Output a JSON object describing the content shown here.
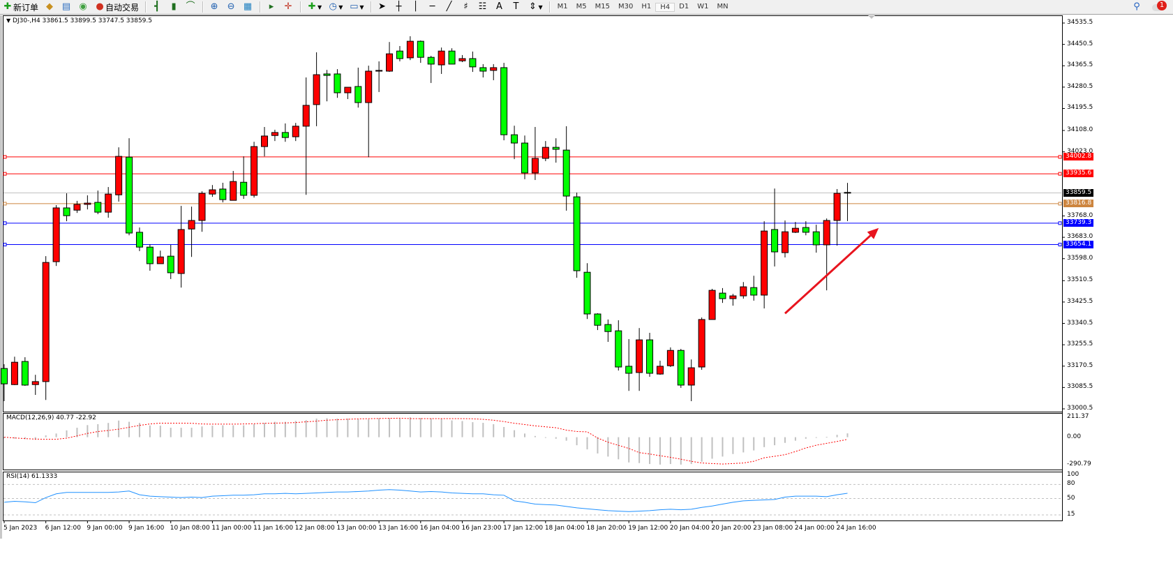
{
  "toolbar": {
    "new_order": "新订单",
    "auto_trading": "自动交易",
    "icons": [
      "new-order-icon",
      "market-watch-icon",
      "navigator-icon",
      "signals-icon",
      "auto-trading-icon",
      "bar-chart-icon",
      "candlestick-icon",
      "line-chart-icon",
      "zoom-in-icon",
      "zoom-out-icon",
      "tile-windows-icon",
      "chart-shift-icon",
      "autoscroll-icon",
      "indicators-icon",
      "periods-icon",
      "templates-icon",
      "cursor-icon",
      "crosshair-icon",
      "vertical-line-icon",
      "horizontal-line-icon",
      "trendline-icon",
      "fibonacci-icon",
      "fibo-fan-icon",
      "text-icon",
      "text-label-icon",
      "arrows-icon"
    ],
    "timeframes": [
      "M1",
      "M5",
      "M15",
      "M30",
      "H1",
      "H4",
      "D1",
      "W1",
      "MN"
    ],
    "active_timeframe": "H4",
    "notification_count": "1"
  },
  "chart": {
    "symbol": "DJ30-,H4",
    "ohlc": "33861.5 33899.5 33747.5 33859.5"
  },
  "chart_data": {
    "type": "candlestick",
    "symbol": "DJ30-",
    "timeframe": "H4",
    "ylim": [
      33000.5,
      34535.5
    ],
    "colors": {
      "bull": "#ff0000",
      "bear": "#00ff00",
      "outline": "#000000"
    },
    "y_ticks": [
      "34535.5",
      "34450.5",
      "34365.5",
      "34280.5",
      "34195.5",
      "34108.0",
      "34023.0",
      "33768.0",
      "33683.0",
      "33598.0",
      "33510.5",
      "33425.5",
      "33340.5",
      "33255.5",
      "33170.5",
      "33085.5",
      "33000.5"
    ],
    "x_labels": [
      "5 Jan 2023",
      "6 Jan 12:00",
      "9 Jan 00:00",
      "9 Jan 16:00",
      "10 Jan 08:00",
      "11 Jan 00:00",
      "11 Jan 16:00",
      "12 Jan 08:00",
      "13 Jan 00:00",
      "13 Jan 16:00",
      "16 Jan 04:00",
      "16 Jan 23:00",
      "17 Jan 12:00",
      "18 Jan 04:00",
      "18 Jan 20:00",
      "19 Jan 12:00",
      "20 Jan 04:00",
      "20 Jan 20:00",
      "23 Jan 08:00",
      "24 Jan 00:00",
      "24 Jan 16:00"
    ],
    "ohlc": [
      [
        33161,
        33178,
        33031,
        33100
      ],
      [
        33097,
        33208,
        33095,
        33186
      ],
      [
        33189,
        33206,
        33092,
        33095
      ],
      [
        33097,
        33136,
        33056,
        33109
      ],
      [
        33109,
        33608,
        33036,
        33583
      ],
      [
        33586,
        33811,
        33569,
        33800
      ],
      [
        33800,
        33858,
        33747,
        33769
      ],
      [
        33791,
        33828,
        33780,
        33814
      ],
      [
        33814,
        33850,
        33794,
        33819
      ],
      [
        33822,
        33869,
        33775,
        33783
      ],
      [
        33783,
        33883,
        33761,
        33855
      ],
      [
        33852,
        34041,
        33825,
        34005
      ],
      [
        34002,
        34077,
        33691,
        33700
      ],
      [
        33703,
        33722,
        33628,
        33644
      ],
      [
        33644,
        33655,
        33550,
        33578
      ],
      [
        33578,
        33630,
        33578,
        33605
      ],
      [
        33608,
        33653,
        33517,
        33542
      ],
      [
        33539,
        33808,
        33483,
        33714
      ],
      [
        33716,
        33805,
        33605,
        33750
      ],
      [
        33750,
        33866,
        33705,
        33858
      ],
      [
        33855,
        33891,
        33844,
        33872
      ],
      [
        33875,
        33900,
        33822,
        33833
      ],
      [
        33830,
        33947,
        33830,
        33905
      ],
      [
        33902,
        34005,
        33836,
        33850
      ],
      [
        33850,
        34063,
        33841,
        34044
      ],
      [
        34044,
        34122,
        34005,
        34086
      ],
      [
        34088,
        34111,
        34066,
        34100
      ],
      [
        34100,
        34136,
        34063,
        34080
      ],
      [
        34083,
        34138,
        34066,
        34125
      ],
      [
        34125,
        34319,
        33852,
        34208
      ],
      [
        34211,
        34419,
        34125,
        34330
      ],
      [
        34333,
        34349,
        34224,
        34327
      ],
      [
        34333,
        34352,
        34238,
        34258
      ],
      [
        34258,
        34280,
        34233,
        34280
      ],
      [
        34283,
        34358,
        34199,
        34219
      ],
      [
        34219,
        34366,
        34002,
        34344
      ],
      [
        34344,
        34383,
        34261,
        34347
      ],
      [
        34344,
        34460,
        34341,
        34413
      ],
      [
        34424,
        34444,
        34383,
        34394
      ],
      [
        34397,
        34483,
        34388,
        34463
      ],
      [
        34463,
        34466,
        34377,
        34399
      ],
      [
        34399,
        34405,
        34297,
        34372
      ],
      [
        34369,
        34438,
        34333,
        34424
      ],
      [
        34424,
        34435,
        34372,
        34372
      ],
      [
        34385,
        34408,
        34380,
        34394
      ],
      [
        34394,
        34422,
        34341,
        34361
      ],
      [
        34358,
        34372,
        34319,
        34344
      ],
      [
        34347,
        34372,
        34308,
        34358
      ],
      [
        34358,
        34377,
        34069,
        34091
      ],
      [
        34091,
        34127,
        33994,
        34058
      ],
      [
        34058,
        34088,
        33914,
        33939
      ],
      [
        33939,
        34122,
        33911,
        33997
      ],
      [
        33997,
        34066,
        33986,
        34041
      ],
      [
        34041,
        34077,
        33980,
        34033
      ],
      [
        34030,
        34125,
        33789,
        33847
      ],
      [
        33844,
        33861,
        33522,
        33550
      ],
      [
        33544,
        33580,
        33358,
        33378
      ],
      [
        33378,
        33381,
        33314,
        33333
      ],
      [
        33336,
        33356,
        33267,
        33308
      ],
      [
        33311,
        33353,
        33153,
        33167
      ],
      [
        33170,
        33278,
        33072,
        33142
      ],
      [
        33145,
        33322,
        33072,
        33275
      ],
      [
        33275,
        33303,
        33128,
        33142
      ],
      [
        33139,
        33192,
        33136,
        33170
      ],
      [
        33172,
        33245,
        33167,
        33233
      ],
      [
        33233,
        33239,
        33084,
        33095
      ],
      [
        33095,
        33197,
        33031,
        33164
      ],
      [
        33167,
        33364,
        33156,
        33356
      ],
      [
        33356,
        33478,
        33356,
        33472
      ],
      [
        33461,
        33481,
        33422,
        33439
      ],
      [
        33439,
        33458,
        33411,
        33450
      ],
      [
        33450,
        33505,
        33439,
        33486
      ],
      [
        33483,
        33530,
        33431,
        33453
      ],
      [
        33453,
        33747,
        33400,
        33708
      ],
      [
        33714,
        33877,
        33567,
        33625
      ],
      [
        33622,
        33750,
        33603,
        33705
      ],
      [
        33703,
        33744,
        33700,
        33719
      ],
      [
        33722,
        33747,
        33691,
        33703
      ],
      [
        33705,
        33733,
        33622,
        33653
      ],
      [
        33653,
        33758,
        33472,
        33750
      ],
      [
        33750,
        33875,
        33650,
        33858
      ],
      [
        33861.5,
        33899.5,
        33747.5,
        33859.5
      ]
    ],
    "levels": [
      {
        "value": "34002.8",
        "color": "#ff0000"
      },
      {
        "value": "33935.6",
        "color": "#ff0000"
      },
      {
        "value": "33859.5",
        "color": "#c0c0c0",
        "label_bg": "#000000"
      },
      {
        "value": "33816.8",
        "color": "#cd853f"
      },
      {
        "value": "33739.3",
        "color": "#0000ff"
      },
      {
        "value": "33654.1",
        "color": "#0000ff"
      }
    ],
    "annotation": {
      "type": "arrow",
      "color": "#e8141e",
      "from": {
        "bar": 75,
        "price": 33380
      },
      "to": {
        "bar": 84,
        "price": 33720
      }
    },
    "macd": {
      "label": "MACD(12,26,9) 40.77 -22.92",
      "ylim": [
        -290.79,
        211.37
      ],
      "ticks": [
        "211.37",
        "0.00",
        "-290.79"
      ],
      "histogram": [
        -12,
        -15,
        -20,
        -26,
        19,
        39,
        72,
        100,
        128,
        138,
        151,
        176,
        163,
        151,
        124,
        122,
        100,
        100,
        100,
        114,
        122,
        126,
        126,
        126,
        138,
        151,
        163,
        163,
        172,
        180,
        197,
        201,
        197,
        197,
        189,
        189,
        201,
        201,
        197,
        211,
        204,
        200,
        193,
        178,
        171,
        159,
        152,
        138,
        108,
        74,
        39,
        13,
        0,
        -16,
        -37,
        -85,
        -129,
        -172,
        -205,
        -234,
        -267,
        -274,
        -284,
        -290,
        -284,
        -290,
        -284,
        -259,
        -228,
        -205,
        -178,
        -161,
        -140,
        -105,
        -85,
        -60,
        -37,
        -16,
        -5,
        3,
        25,
        40.77
      ],
      "signal": [
        0,
        -8,
        -15,
        -20,
        -22,
        -22,
        -10,
        14,
        40,
        60,
        71,
        85,
        105,
        125,
        140,
        149,
        149,
        149,
        147,
        140,
        138,
        138,
        138,
        140,
        143,
        147,
        149,
        151,
        155,
        163,
        170,
        180,
        185,
        190,
        194,
        196,
        198,
        200,
        201,
        197,
        197,
        197,
        197,
        197,
        197,
        195,
        189,
        180,
        165,
        148,
        134,
        120,
        110,
        100,
        75,
        60,
        57,
        -9,
        -53,
        -86,
        -119,
        -163,
        -178,
        -196,
        -213,
        -233,
        -255,
        -273,
        -279,
        -284,
        -279,
        -273,
        -255,
        -218,
        -202,
        -185,
        -152,
        -114,
        -85,
        -65,
        -45,
        -22.92
      ],
      "colors": {
        "histogram": "#c0c0c0",
        "signal": "#ff0000"
      }
    },
    "rsi": {
      "label": "RSI(14) 61.1333",
      "ylim": [
        0,
        100
      ],
      "ticks": [
        "100",
        "80",
        "50",
        "15"
      ],
      "levels": [
        80,
        50,
        15
      ],
      "values": [
        42,
        44,
        43,
        41,
        52,
        60,
        63,
        63,
        63,
        63,
        63,
        64,
        66,
        58,
        55,
        54,
        53,
        52,
        53,
        52,
        55,
        56,
        57,
        57,
        58,
        60,
        60,
        61,
        60,
        61,
        62,
        63,
        64,
        64,
        65,
        66,
        68,
        69,
        68,
        66,
        64,
        65,
        64,
        62,
        61,
        60,
        60,
        58,
        57,
        45,
        42,
        38,
        37,
        36,
        33,
        30,
        28,
        26,
        24,
        23,
        22,
        23,
        24,
        26,
        27,
        26,
        27,
        31,
        34,
        38,
        42,
        45,
        46,
        47,
        48,
        53,
        55,
        55,
        55,
        54,
        58,
        61.1333
      ],
      "color": "#1e90ff"
    }
  }
}
